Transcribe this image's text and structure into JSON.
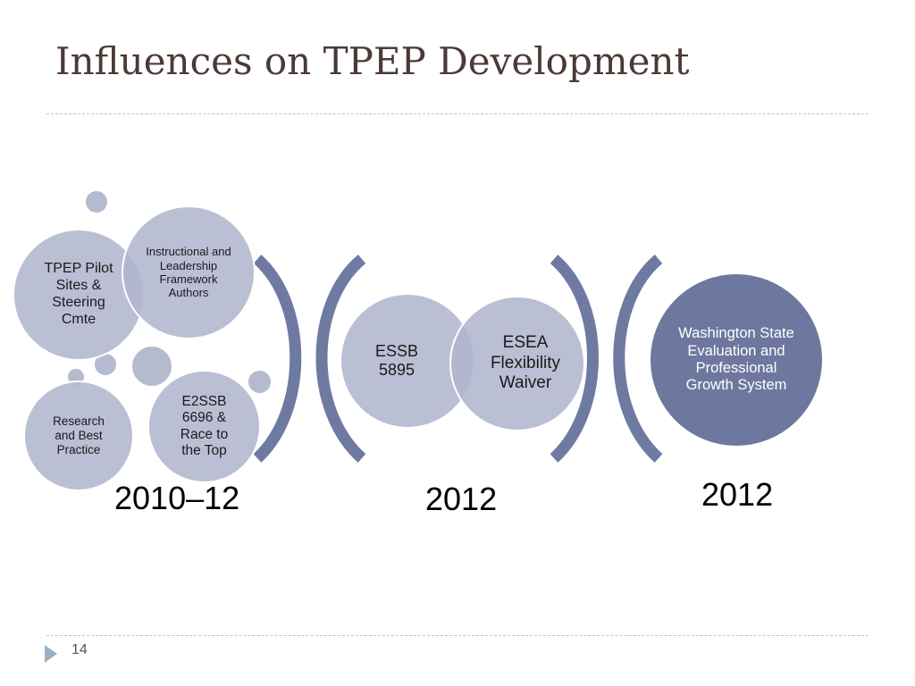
{
  "title": "Influences on TPEP Development",
  "groups": [
    {
      "year": "2010–12",
      "bubbles": [
        {
          "label": "TPEP Pilot Sites & Steering Cmte"
        },
        {
          "label": "Instructional and Leadership Framework Authors"
        },
        {
          "label": "Research and Best Practice"
        },
        {
          "label": "E2SSB 6696 & Race to the Top"
        }
      ]
    },
    {
      "year": "2012",
      "bubbles": [
        {
          "label": "ESSB 5895"
        },
        {
          "label": "ESEA Flexibility Waiver"
        }
      ]
    },
    {
      "year": "2012",
      "bubbles": [
        {
          "label": "Washington State Evaluation and Professional Growth System"
        }
      ]
    }
  ],
  "page_number": "14",
  "colors": {
    "light_bubble": "#b0b6ce",
    "dark_bubble": "#6e779e",
    "bracket": "#6f7aa3",
    "title": "#4a3a36"
  }
}
